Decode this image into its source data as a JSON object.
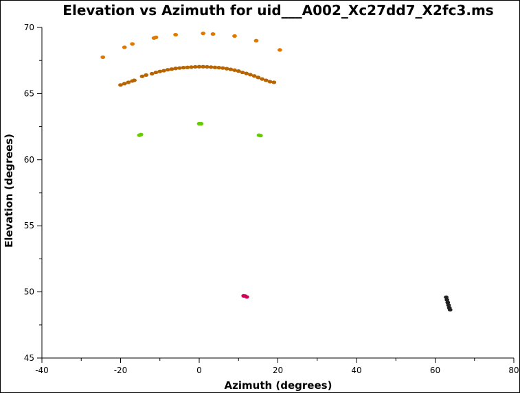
{
  "chart_data": {
    "type": "scatter",
    "title": "Elevation vs Azimuth for uid___A002_Xc27dd7_X2fc3.ms",
    "xlabel": "Azimuth (degrees)",
    "ylabel": "Elevation (degrees)",
    "xlim": [
      -40,
      80
    ],
    "ylim": [
      45,
      70
    ],
    "x_ticks": [
      -40,
      -20,
      0,
      20,
      40,
      60,
      80
    ],
    "y_ticks": [
      45,
      50,
      55,
      60,
      65,
      70
    ],
    "grid": false,
    "legend": "none",
    "series": [
      {
        "color": "#e07800",
        "points": [
          [
            -24.5,
            67.75
          ],
          [
            -19,
            68.5
          ],
          [
            -17,
            68.75
          ],
          [
            -11.5,
            69.2
          ],
          [
            -11,
            69.25
          ],
          [
            -6,
            69.45
          ],
          [
            1,
            69.55
          ],
          [
            3.5,
            69.5
          ],
          [
            9,
            69.35
          ],
          [
            14.5,
            69.0
          ],
          [
            20.5,
            68.3
          ]
        ]
      },
      {
        "color": "#b86400",
        "points": [
          [
            -20,
            65.65
          ],
          [
            -19,
            65.75
          ],
          [
            -18,
            65.85
          ],
          [
            -17,
            65.95
          ],
          [
            -16.5,
            66.0
          ],
          [
            -14.5,
            66.3
          ],
          [
            -13.5,
            66.4
          ],
          [
            -12,
            66.5
          ],
          [
            -11,
            66.6
          ],
          [
            -10,
            66.67
          ],
          [
            -9,
            66.73
          ],
          [
            -8,
            66.8
          ],
          [
            -7,
            66.85
          ],
          [
            -6,
            66.9
          ],
          [
            -5,
            66.93
          ],
          [
            -4,
            66.96
          ],
          [
            -3,
            66.98
          ],
          [
            -2,
            67.0
          ],
          [
            -1,
            67.02
          ],
          [
            0,
            67.03
          ],
          [
            1,
            67.03
          ],
          [
            2,
            67.02
          ],
          [
            3,
            67.0
          ],
          [
            4,
            66.98
          ],
          [
            5,
            66.96
          ],
          [
            6,
            66.93
          ],
          [
            7,
            66.88
          ],
          [
            8,
            66.83
          ],
          [
            9,
            66.77
          ],
          [
            10,
            66.7
          ],
          [
            11,
            66.6
          ],
          [
            12,
            66.52
          ],
          [
            13,
            66.43
          ],
          [
            14,
            66.33
          ],
          [
            15,
            66.22
          ],
          [
            16,
            66.1
          ],
          [
            17,
            66.0
          ],
          [
            18,
            65.9
          ],
          [
            19,
            65.85
          ]
        ]
      },
      {
        "color": "#66cc00",
        "points": [
          [
            -15.2,
            61.85
          ],
          [
            -14.8,
            61.9
          ],
          [
            0,
            62.72
          ],
          [
            0.5,
            62.72
          ],
          [
            15.2,
            61.85
          ],
          [
            15.6,
            61.82
          ]
        ]
      },
      {
        "color": "#d4005a",
        "points": [
          [
            11.3,
            49.7
          ],
          [
            11.7,
            49.68
          ],
          [
            12.1,
            49.62
          ]
        ]
      },
      {
        "color": "#202020",
        "points": [
          [
            62.8,
            49.6
          ],
          [
            63.0,
            49.4
          ],
          [
            63.2,
            49.2
          ],
          [
            63.4,
            49.0
          ],
          [
            63.6,
            48.8
          ],
          [
            63.8,
            48.65
          ]
        ]
      }
    ]
  }
}
